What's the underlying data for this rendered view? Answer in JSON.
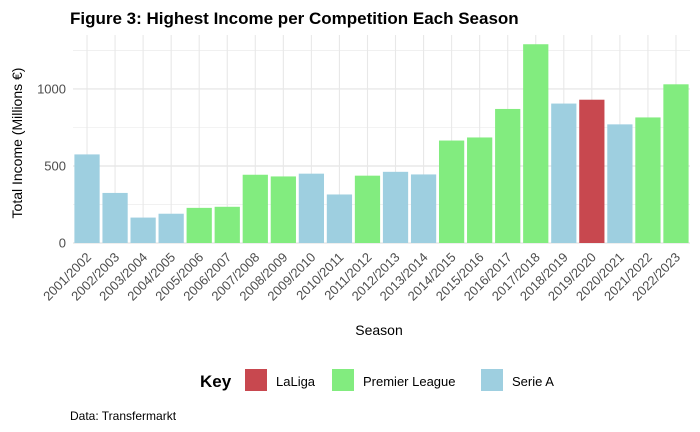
{
  "chart_data": {
    "type": "bar",
    "title": "Figure 3: Highest Income per Competition Each Season",
    "xlabel": "Season",
    "ylabel": "Total Income (Millions €)",
    "ylim": [
      0,
      1350
    ],
    "yticks": [
      0,
      500,
      1000
    ],
    "grid": true,
    "legend_title": "Key",
    "legend_position": "bottom",
    "legend": [
      {
        "label": "LaLiga",
        "color": "#c8484f"
      },
      {
        "label": "Premier League",
        "color": "#82ec7f"
      },
      {
        "label": "Serie A",
        "color": "#9ecfe0"
      }
    ],
    "categories": [
      "2001/2002",
      "2002/2003",
      "2003/2004",
      "2004/2005",
      "2005/2006",
      "2006/2007",
      "2007/2008",
      "2008/2009",
      "2009/2010",
      "2010/2011",
      "2011/2012",
      "2012/2013",
      "2013/2014",
      "2014/2015",
      "2015/2016",
      "2016/2017",
      "2017/2018",
      "2018/2019",
      "2019/2020",
      "2020/2021",
      "2021/2022",
      "2022/2023"
    ],
    "values": [
      575,
      325,
      165,
      190,
      228,
      235,
      443,
      432,
      450,
      315,
      437,
      462,
      445,
      665,
      685,
      870,
      1290,
      905,
      930,
      770,
      815,
      1030
    ],
    "competitions": [
      "Serie A",
      "Serie A",
      "Serie A",
      "Serie A",
      "Premier League",
      "Premier League",
      "Premier League",
      "Premier League",
      "Serie A",
      "Serie A",
      "Premier League",
      "Serie A",
      "Serie A",
      "Premier League",
      "Premier League",
      "Premier League",
      "Premier League",
      "Serie A",
      "LaLiga",
      "Serie A",
      "Premier League",
      "Premier League"
    ],
    "caption": "Data: Transfermarkt"
  }
}
